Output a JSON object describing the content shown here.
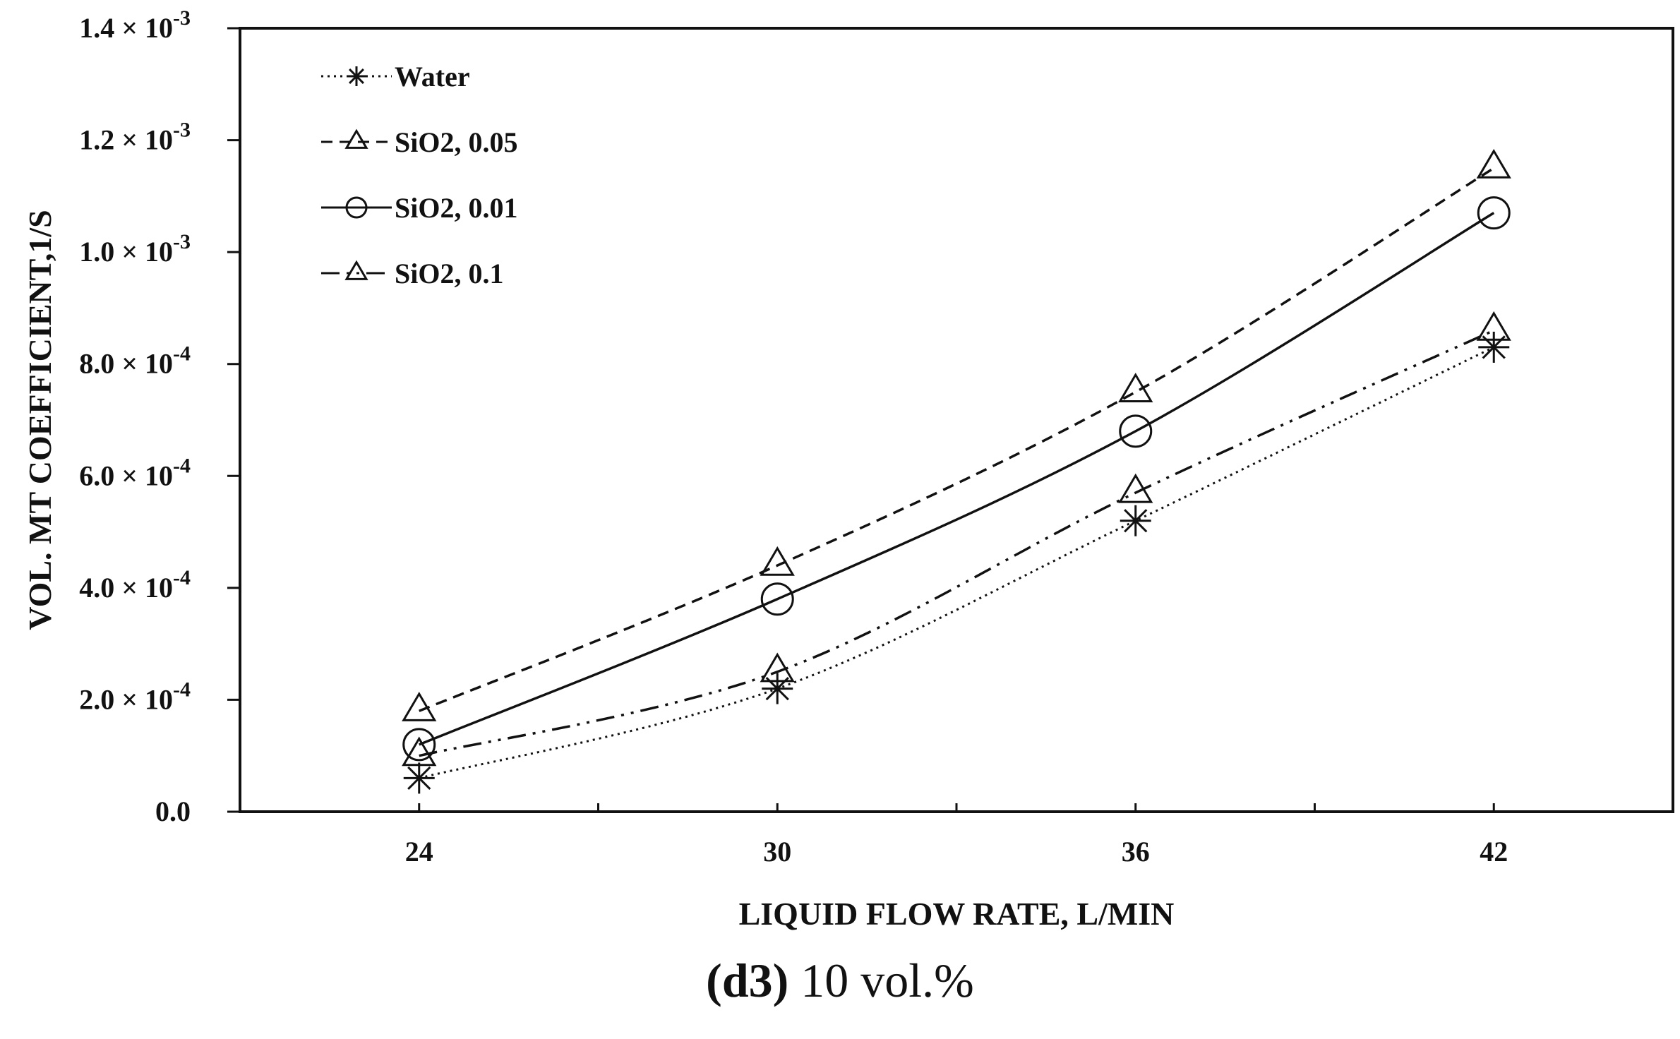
{
  "chart_data": {
    "type": "line",
    "title": "",
    "xlabel": "LIQUID FLOW RATE, L/MIN",
    "ylabel": "VOL.  MT COEFFICIENT,1/S",
    "x": [
      24,
      30,
      36,
      42
    ],
    "xlim": [
      21,
      45
    ],
    "xticks": [
      24,
      30,
      36,
      42
    ],
    "ylim": [
      0,
      0.0014
    ],
    "yticks": [
      {
        "value": 0,
        "mantissa": "0.0",
        "exponent": ""
      },
      {
        "value": 0.0002,
        "mantissa": "2.0",
        "exponent": "-4"
      },
      {
        "value": 0.0004,
        "mantissa": "4.0",
        "exponent": "-4"
      },
      {
        "value": 0.0006,
        "mantissa": "6.0",
        "exponent": "-4"
      },
      {
        "value": 0.0008,
        "mantissa": "8.0",
        "exponent": "-4"
      },
      {
        "value": 0.001,
        "mantissa": "1.0",
        "exponent": "-3"
      },
      {
        "value": 0.0012,
        "mantissa": "1.2",
        "exponent": "-3"
      },
      {
        "value": 0.0014,
        "mantissa": "1.4",
        "exponent": "-3"
      }
    ],
    "legend_position": "top-left",
    "series": [
      {
        "name": "Water",
        "marker": "star",
        "dash": "dotted",
        "values": [
          6e-05,
          0.00022,
          0.00052,
          0.00083
        ]
      },
      {
        "name": "SiO2, 0.05",
        "marker": "triangle",
        "dash": "dashed",
        "values": [
          0.00018,
          0.00044,
          0.00075,
          0.00115
        ]
      },
      {
        "name": "SiO2, 0.01",
        "marker": "circle",
        "dash": "solid",
        "values": [
          0.00012,
          0.00038,
          0.00068,
          0.00107
        ]
      },
      {
        "name": "SiO2, 0.1",
        "marker": "triangle",
        "dash": "dashdot",
        "values": [
          0.0001,
          0.00025,
          0.00057,
          0.00086
        ]
      }
    ],
    "times_sign": "×",
    "base": "10"
  },
  "caption": {
    "label": "(d3)",
    "text": " 10 vol.%"
  }
}
